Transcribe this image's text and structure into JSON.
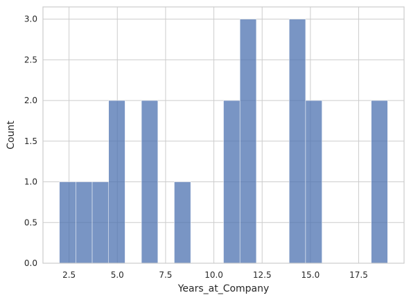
{
  "chart_data": {
    "type": "bar",
    "xlabel": "Years_at_Company",
    "ylabel": "Count",
    "xlim": [
      1.15,
      19.85
    ],
    "ylim": [
      0,
      3.15
    ],
    "x_ticks": [
      2.5,
      5.0,
      7.5,
      10.0,
      12.5,
      15.0,
      17.5
    ],
    "x_tick_labels": [
      "2.5",
      "5.0",
      "7.5",
      "10.0",
      "12.5",
      "15.0",
      "17.5"
    ],
    "y_ticks": [
      0,
      0.5,
      1.0,
      1.5,
      2.0,
      2.5,
      3.0
    ],
    "y_tick_labels": [
      "0.0",
      "0.5",
      "1.0",
      "1.5",
      "2.0",
      "2.5",
      "3.0"
    ],
    "bin_edges": [
      2.0,
      2.85,
      3.7,
      4.55,
      5.4,
      6.25,
      7.1,
      7.95,
      8.8,
      9.65,
      10.5,
      11.35,
      12.2,
      13.05,
      13.9,
      14.75,
      15.6,
      16.45,
      17.3,
      18.15,
      19.0
    ],
    "counts": [
      1,
      1,
      1,
      2,
      0,
      2,
      0,
      1,
      0,
      0,
      2,
      3,
      0,
      0,
      3,
      2,
      0,
      0,
      0,
      2
    ],
    "grid": true,
    "bar_color": "#4c72b0"
  }
}
